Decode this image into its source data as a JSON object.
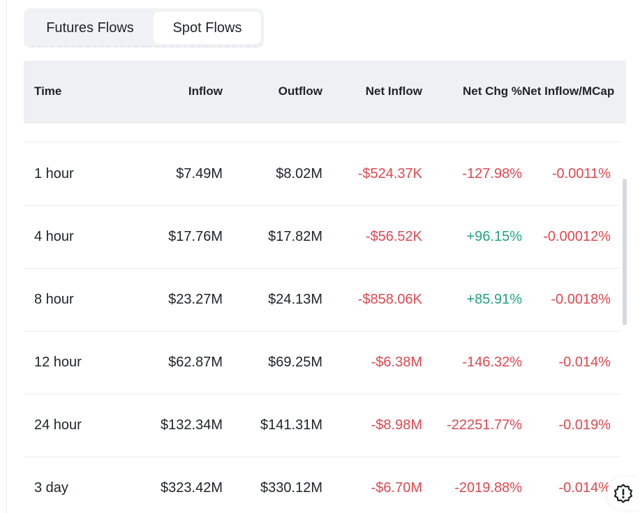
{
  "tabs": [
    {
      "label": "Futures Flows",
      "active": false
    },
    {
      "label": "Spot Flows",
      "active": true
    }
  ],
  "table": {
    "headers": {
      "time": "Time",
      "inflow": "Inflow",
      "outflow": "Outflow",
      "net_inflow": "Net Inflow",
      "net_chg": "Net Chg %",
      "net_mcap": "Net Inflow/MCap"
    },
    "rows": [
      {
        "time": "1 hour",
        "inflow": "$7.49M",
        "outflow": "$8.02M",
        "net_inflow": "-$524.37K",
        "net_chg": "-127.98%",
        "net_mcap": "-0.0011%"
      },
      {
        "time": "4 hour",
        "inflow": "$17.76M",
        "outflow": "$17.82M",
        "net_inflow": "-$56.52K",
        "net_chg": "+96.15%",
        "net_mcap": "-0.00012%"
      },
      {
        "time": "8 hour",
        "inflow": "$23.27M",
        "outflow": "$24.13M",
        "net_inflow": "-$858.06K",
        "net_chg": "+85.91%",
        "net_mcap": "-0.0018%"
      },
      {
        "time": "12 hour",
        "inflow": "$62.87M",
        "outflow": "$69.25M",
        "net_inflow": "-$6.38M",
        "net_chg": "-146.32%",
        "net_mcap": "-0.014%"
      },
      {
        "time": "24 hour",
        "inflow": "$132.34M",
        "outflow": "$141.31M",
        "net_inflow": "-$8.98M",
        "net_chg": "-22251.77%",
        "net_mcap": "-0.019%"
      },
      {
        "time": "3 day",
        "inflow": "$323.42M",
        "outflow": "$330.12M",
        "net_inflow": "-$6.70M",
        "net_chg": "-2019.88%",
        "net_mcap": "-0.014%"
      }
    ]
  },
  "colors": {
    "negative": "#e0474f",
    "positive": "#21a27a",
    "header_bg": "#eef0f4"
  },
  "icons": {
    "help": "alert-badge-icon"
  }
}
